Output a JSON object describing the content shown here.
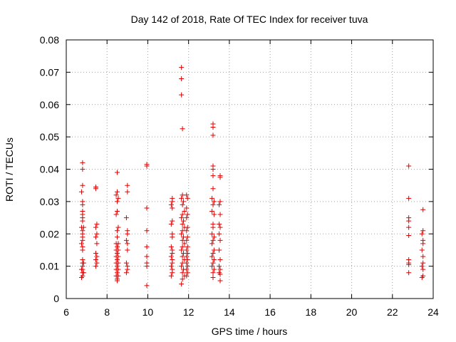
{
  "chart_data": {
    "type": "scatter",
    "title": "Day 142 of 2018, Rate Of TEC Index for receiver tuva",
    "xlabel": "GPS time / hours",
    "ylabel": "ROTI / TECUs",
    "xlim": [
      6,
      24
    ],
    "ylim": [
      0,
      0.08
    ],
    "x_ticks": [
      6,
      8,
      10,
      12,
      14,
      16,
      18,
      20,
      22,
      24
    ],
    "x_tick_labels": [
      "6",
      "8",
      "10",
      "12",
      "14",
      "16",
      "18",
      "20",
      "22",
      "24"
    ],
    "y_ticks": [
      0,
      0.01,
      0.02,
      0.03,
      0.04,
      0.05,
      0.06,
      0.07,
      0.08
    ],
    "y_tick_labels": [
      "0",
      "0.01",
      "0.02",
      "0.03",
      "0.04",
      "0.05",
      "0.06",
      "0.07",
      "0.08"
    ],
    "grid": true,
    "marker": "+",
    "marker_color": "#e00000",
    "series": [
      {
        "name": "ROTI",
        "points": [
          [
            6.8,
            0.042
          ],
          [
            6.8,
            0.04
          ],
          [
            6.8,
            0.035
          ],
          [
            6.75,
            0.033
          ],
          [
            6.8,
            0.03
          ],
          [
            6.8,
            0.029
          ],
          [
            6.8,
            0.027
          ],
          [
            6.8,
            0.026
          ],
          [
            6.8,
            0.025
          ],
          [
            6.8,
            0.024
          ],
          [
            6.75,
            0.022
          ],
          [
            6.85,
            0.022
          ],
          [
            6.8,
            0.021
          ],
          [
            6.8,
            0.02
          ],
          [
            6.8,
            0.019
          ],
          [
            6.8,
            0.018
          ],
          [
            6.75,
            0.017
          ],
          [
            6.8,
            0.016
          ],
          [
            6.8,
            0.015
          ],
          [
            6.8,
            0.012
          ],
          [
            6.8,
            0.011
          ],
          [
            6.85,
            0.011
          ],
          [
            6.8,
            0.01
          ],
          [
            6.75,
            0.009
          ],
          [
            6.8,
            0.009
          ],
          [
            6.85,
            0.008
          ],
          [
            6.8,
            0.008
          ],
          [
            6.8,
            0.007
          ],
          [
            6.75,
            0.0065
          ],
          [
            7.45,
            0.0345
          ],
          [
            7.45,
            0.034
          ],
          [
            7.5,
            0.023
          ],
          [
            7.45,
            0.022
          ],
          [
            7.5,
            0.02
          ],
          [
            7.45,
            0.019
          ],
          [
            7.5,
            0.017
          ],
          [
            7.45,
            0.014
          ],
          [
            7.5,
            0.013
          ],
          [
            7.45,
            0.012
          ],
          [
            7.5,
            0.011
          ],
          [
            7.45,
            0.01
          ],
          [
            8.5,
            0.039
          ],
          [
            8.5,
            0.033
          ],
          [
            8.45,
            0.032
          ],
          [
            8.55,
            0.031
          ],
          [
            8.5,
            0.03
          ],
          [
            8.5,
            0.027
          ],
          [
            8.45,
            0.026
          ],
          [
            8.55,
            0.022
          ],
          [
            8.5,
            0.021
          ],
          [
            8.5,
            0.019
          ],
          [
            8.45,
            0.017
          ],
          [
            8.55,
            0.017
          ],
          [
            8.5,
            0.016
          ],
          [
            8.45,
            0.015
          ],
          [
            8.55,
            0.015
          ],
          [
            8.5,
            0.014
          ],
          [
            8.45,
            0.013
          ],
          [
            8.55,
            0.013
          ],
          [
            8.5,
            0.012
          ],
          [
            8.45,
            0.011
          ],
          [
            8.55,
            0.011
          ],
          [
            8.5,
            0.01
          ],
          [
            8.45,
            0.009
          ],
          [
            8.55,
            0.009
          ],
          [
            8.5,
            0.008
          ],
          [
            8.45,
            0.007
          ],
          [
            8.55,
            0.007
          ],
          [
            8.5,
            0.006
          ],
          [
            8.5,
            0.0055
          ],
          [
            9.0,
            0.035
          ],
          [
            9.0,
            0.033
          ],
          [
            8.95,
            0.025
          ],
          [
            9.0,
            0.021
          ],
          [
            9.0,
            0.02
          ],
          [
            8.95,
            0.018
          ],
          [
            9.0,
            0.017
          ],
          [
            9.0,
            0.015
          ],
          [
            8.95,
            0.011
          ],
          [
            9.0,
            0.01
          ],
          [
            9.0,
            0.009
          ],
          [
            8.95,
            0.008
          ],
          [
            9.95,
            0.0415
          ],
          [
            9.95,
            0.041
          ],
          [
            9.95,
            0.028
          ],
          [
            9.95,
            0.021
          ],
          [
            9.95,
            0.016
          ],
          [
            9.95,
            0.013
          ],
          [
            9.95,
            0.011
          ],
          [
            9.95,
            0.01
          ],
          [
            9.95,
            0.004
          ],
          [
            11.2,
            0.031
          ],
          [
            11.2,
            0.03
          ],
          [
            11.15,
            0.029
          ],
          [
            11.2,
            0.028
          ],
          [
            11.2,
            0.024
          ],
          [
            11.15,
            0.023
          ],
          [
            11.2,
            0.02
          ],
          [
            11.2,
            0.019
          ],
          [
            11.15,
            0.016
          ],
          [
            11.2,
            0.015
          ],
          [
            11.2,
            0.014
          ],
          [
            11.15,
            0.013
          ],
          [
            11.2,
            0.012
          ],
          [
            11.2,
            0.011
          ],
          [
            11.15,
            0.01
          ],
          [
            11.2,
            0.009
          ],
          [
            11.2,
            0.008
          ],
          [
            11.15,
            0.007
          ],
          [
            11.65,
            0.0715
          ],
          [
            11.65,
            0.068
          ],
          [
            11.65,
            0.063
          ],
          [
            11.7,
            0.0525
          ],
          [
            11.7,
            0.032
          ],
          [
            11.65,
            0.031
          ],
          [
            11.75,
            0.03
          ],
          [
            11.7,
            0.029
          ],
          [
            11.8,
            0.027
          ],
          [
            11.7,
            0.026
          ],
          [
            11.65,
            0.025
          ],
          [
            11.75,
            0.024
          ],
          [
            11.7,
            0.023
          ],
          [
            11.8,
            0.022
          ],
          [
            11.7,
            0.021
          ],
          [
            11.65,
            0.02
          ],
          [
            11.75,
            0.019
          ],
          [
            11.7,
            0.018
          ],
          [
            11.8,
            0.017
          ],
          [
            11.7,
            0.016
          ],
          [
            11.65,
            0.015
          ],
          [
            11.75,
            0.014
          ],
          [
            11.7,
            0.013
          ],
          [
            11.8,
            0.012
          ],
          [
            11.7,
            0.011
          ],
          [
            11.65,
            0.01
          ],
          [
            11.75,
            0.009
          ],
          [
            11.7,
            0.008
          ],
          [
            11.8,
            0.007
          ],
          [
            11.7,
            0.006
          ],
          [
            11.65,
            0.0045
          ],
          [
            11.9,
            0.032
          ],
          [
            11.95,
            0.031
          ],
          [
            11.9,
            0.028
          ],
          [
            11.95,
            0.026
          ],
          [
            11.9,
            0.025
          ],
          [
            11.95,
            0.022
          ],
          [
            11.9,
            0.021
          ],
          [
            11.95,
            0.019
          ],
          [
            11.9,
            0.018
          ],
          [
            11.95,
            0.016
          ],
          [
            11.9,
            0.015
          ],
          [
            11.95,
            0.014
          ],
          [
            11.9,
            0.013
          ],
          [
            11.95,
            0.012
          ],
          [
            11.9,
            0.011
          ],
          [
            11.95,
            0.01
          ],
          [
            11.9,
            0.009
          ],
          [
            11.95,
            0.008
          ],
          [
            11.9,
            0.007
          ],
          [
            13.2,
            0.054
          ],
          [
            13.2,
            0.053
          ],
          [
            13.2,
            0.0505
          ],
          [
            13.2,
            0.041
          ],
          [
            13.2,
            0.04
          ],
          [
            13.2,
            0.038
          ],
          [
            13.2,
            0.034
          ],
          [
            13.15,
            0.031
          ],
          [
            13.25,
            0.03
          ],
          [
            13.2,
            0.029
          ],
          [
            13.15,
            0.027
          ],
          [
            13.25,
            0.026
          ],
          [
            13.2,
            0.023
          ],
          [
            13.2,
            0.022
          ],
          [
            13.15,
            0.02
          ],
          [
            13.25,
            0.019
          ],
          [
            13.2,
            0.018
          ],
          [
            13.15,
            0.017
          ],
          [
            13.25,
            0.015
          ],
          [
            13.2,
            0.014
          ],
          [
            13.15,
            0.013
          ],
          [
            13.25,
            0.012
          ],
          [
            13.2,
            0.011
          ],
          [
            13.15,
            0.01
          ],
          [
            13.25,
            0.009
          ],
          [
            13.2,
            0.008
          ],
          [
            13.2,
            0.0065
          ],
          [
            13.55,
            0.038
          ],
          [
            13.55,
            0.0375
          ],
          [
            13.55,
            0.03
          ],
          [
            13.5,
            0.029
          ],
          [
            13.55,
            0.026
          ],
          [
            13.5,
            0.023
          ],
          [
            13.55,
            0.022
          ],
          [
            13.5,
            0.02
          ],
          [
            13.55,
            0.018
          ],
          [
            13.5,
            0.015
          ],
          [
            13.55,
            0.012
          ],
          [
            13.5,
            0.01
          ],
          [
            13.55,
            0.009
          ],
          [
            13.5,
            0.008
          ],
          [
            13.55,
            0.0075
          ],
          [
            13.55,
            0.0055
          ],
          [
            22.8,
            0.041
          ],
          [
            22.8,
            0.031
          ],
          [
            22.8,
            0.025
          ],
          [
            22.8,
            0.024
          ],
          [
            22.8,
            0.022
          ],
          [
            22.8,
            0.0195
          ],
          [
            22.8,
            0.012
          ],
          [
            22.8,
            0.011
          ],
          [
            22.8,
            0.0105
          ],
          [
            22.8,
            0.008
          ],
          [
            23.5,
            0.0275
          ],
          [
            23.5,
            0.021
          ],
          [
            23.45,
            0.02
          ],
          [
            23.5,
            0.018
          ],
          [
            23.5,
            0.017
          ],
          [
            23.45,
            0.015
          ],
          [
            23.5,
            0.013
          ],
          [
            23.5,
            0.011
          ],
          [
            23.45,
            0.01
          ],
          [
            23.5,
            0.009
          ],
          [
            23.5,
            0.007
          ],
          [
            23.45,
            0.0065
          ]
        ]
      }
    ]
  }
}
